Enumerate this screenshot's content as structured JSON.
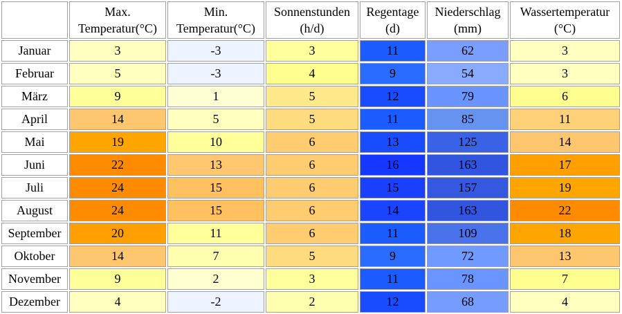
{
  "headers": [
    {
      "line1": "Max.",
      "line2": "Temperatur(°C)"
    },
    {
      "line1": "Min.",
      "line2": "Temperatur(°C)"
    },
    {
      "line1": "Sonnenstunden",
      "line2": "(h/d)"
    },
    {
      "line1": "Regentage",
      "line2": "(d)"
    },
    {
      "line1": "Niederschlag",
      "line2": "(mm)"
    },
    {
      "line1": "Wassertemperatur",
      "line2": "(°C)"
    }
  ],
  "rows": [
    {
      "month": "Januar",
      "values": [
        "3",
        "-3",
        "3",
        "11",
        "62",
        "3"
      ],
      "colors": [
        "#ffffc0",
        "#eef4ff",
        "#ffff9c",
        "#1a5cff",
        "#7a9eff",
        "#ffffc0"
      ]
    },
    {
      "month": "Februar",
      "values": [
        "5",
        "-3",
        "4",
        "9",
        "54",
        "3"
      ],
      "colors": [
        "#ffffc0",
        "#eef4ff",
        "#ffff90",
        "#2a6cff",
        "#88aaff",
        "#ffffc0"
      ]
    },
    {
      "month": "März",
      "values": [
        "9",
        "1",
        "5",
        "12",
        "79",
        "6"
      ],
      "colors": [
        "#ffff99",
        "#ffffd4",
        "#ffe98a",
        "#1a4cff",
        "#6a94ff",
        "#ffff90"
      ]
    },
    {
      "month": "April",
      "values": [
        "14",
        "5",
        "5",
        "11",
        "85",
        "11"
      ],
      "colors": [
        "#ffc670",
        "#ffffc0",
        "#ffdb80",
        "#1a5cff",
        "#6692f0",
        "#ffd27a"
      ]
    },
    {
      "month": "Mai",
      "values": [
        "19",
        "10",
        "6",
        "13",
        "125",
        "14"
      ],
      "colors": [
        "#ffa500",
        "#ffff99",
        "#ffcc70",
        "#1a4cff",
        "#3a62e6",
        "#ffc670"
      ]
    },
    {
      "month": "Juni",
      "values": [
        "22",
        "13",
        "6",
        "16",
        "163",
        "17"
      ],
      "colors": [
        "#ff8c00",
        "#ffc870",
        "#ffcc70",
        "#1438ff",
        "#3255e0",
        "#ffa000"
      ]
    },
    {
      "month": "Juli",
      "values": [
        "24",
        "15",
        "6",
        "15",
        "157",
        "19"
      ],
      "colors": [
        "#ff8c00",
        "#ffc060",
        "#ffcc70",
        "#1a40ff",
        "#3458e0",
        "#ffa500"
      ]
    },
    {
      "month": "August",
      "values": [
        "24",
        "15",
        "6",
        "14",
        "163",
        "22"
      ],
      "colors": [
        "#ff8c00",
        "#ffc060",
        "#ffcc70",
        "#1a44ff",
        "#3255e0",
        "#ff8c00"
      ]
    },
    {
      "month": "September",
      "values": [
        "20",
        "11",
        "6",
        "11",
        "109",
        "18"
      ],
      "colors": [
        "#ffa000",
        "#ffff99",
        "#ffcc70",
        "#1a5cff",
        "#4a72ea",
        "#ffa500"
      ]
    },
    {
      "month": "Oktober",
      "values": [
        "14",
        "7",
        "5",
        "9",
        "72",
        "13"
      ],
      "colors": [
        "#ffc670",
        "#ffffb0",
        "#ffdb80",
        "#2a6cff",
        "#709aff",
        "#ffc670"
      ]
    },
    {
      "month": "November",
      "values": [
        "9",
        "2",
        "3",
        "11",
        "78",
        "7"
      ],
      "colors": [
        "#ffff99",
        "#ffffd0",
        "#ffff9c",
        "#1a5cff",
        "#6a94ff",
        "#ffff90"
      ]
    },
    {
      "month": "Dezember",
      "values": [
        "4",
        "-2",
        "2",
        "12",
        "68",
        "4"
      ],
      "colors": [
        "#ffffc0",
        "#eef4ff",
        "#ffffb0",
        "#1a4cff",
        "#769cff",
        "#ffffc0"
      ]
    }
  ]
}
